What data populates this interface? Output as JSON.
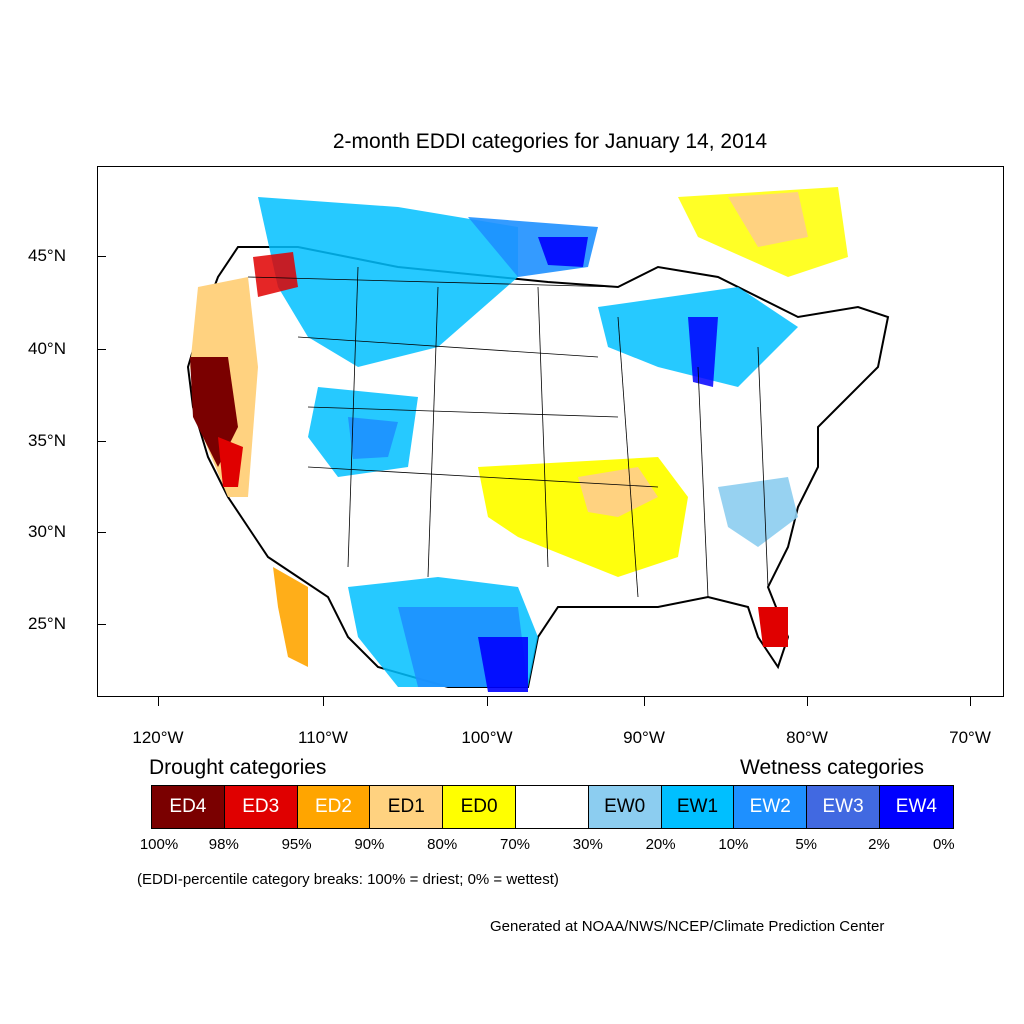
{
  "title": "2-month EDDI categories for January 14, 2014",
  "axes": {
    "y_labels": [
      "45°N",
      "40°N",
      "35°N",
      "30°N",
      "25°N"
    ],
    "x_labels": [
      "120°W",
      "110°W",
      "100°W",
      "90°W",
      "80°W",
      "70°W"
    ]
  },
  "legend": {
    "drought_title": "Drought categories",
    "wetness_title": "Wetness categories",
    "categories": [
      {
        "label": "ED4",
        "color": "#7a0000",
        "text_color": "#ffffff"
      },
      {
        "label": "ED3",
        "color": "#e00000",
        "text_color": "#ffffff"
      },
      {
        "label": "ED2",
        "color": "#ffa500",
        "text_color": "#ffffff"
      },
      {
        "label": "ED1",
        "color": "#ffd280",
        "text_color": "#000000"
      },
      {
        "label": "ED0",
        "color": "#ffff00",
        "text_color": "#000000"
      },
      {
        "label": "",
        "color": "#ffffff",
        "text_color": "#000000"
      },
      {
        "label": "EW0",
        "color": "#8ccdf0",
        "text_color": "#000000"
      },
      {
        "label": "EW1",
        "color": "#00bfff",
        "text_color": "#000000"
      },
      {
        "label": "EW2",
        "color": "#1e90ff",
        "text_color": "#ffffff"
      },
      {
        "label": "EW3",
        "color": "#4169e1",
        "text_color": "#ffffff"
      },
      {
        "label": "EW4",
        "color": "#0000ff",
        "text_color": "#ffffff"
      }
    ],
    "percent_breaks": [
      "100%",
      "98%",
      "95%",
      "90%",
      "80%",
      "70%",
      "30%",
      "20%",
      "10%",
      "5%",
      "2%",
      "0%"
    ]
  },
  "note": "(EDDI-percentile category breaks: 100% = driest; 0% = wettest)",
  "credit": "Generated at NOAA/NWS/NCEP/Climate Prediction Center"
}
